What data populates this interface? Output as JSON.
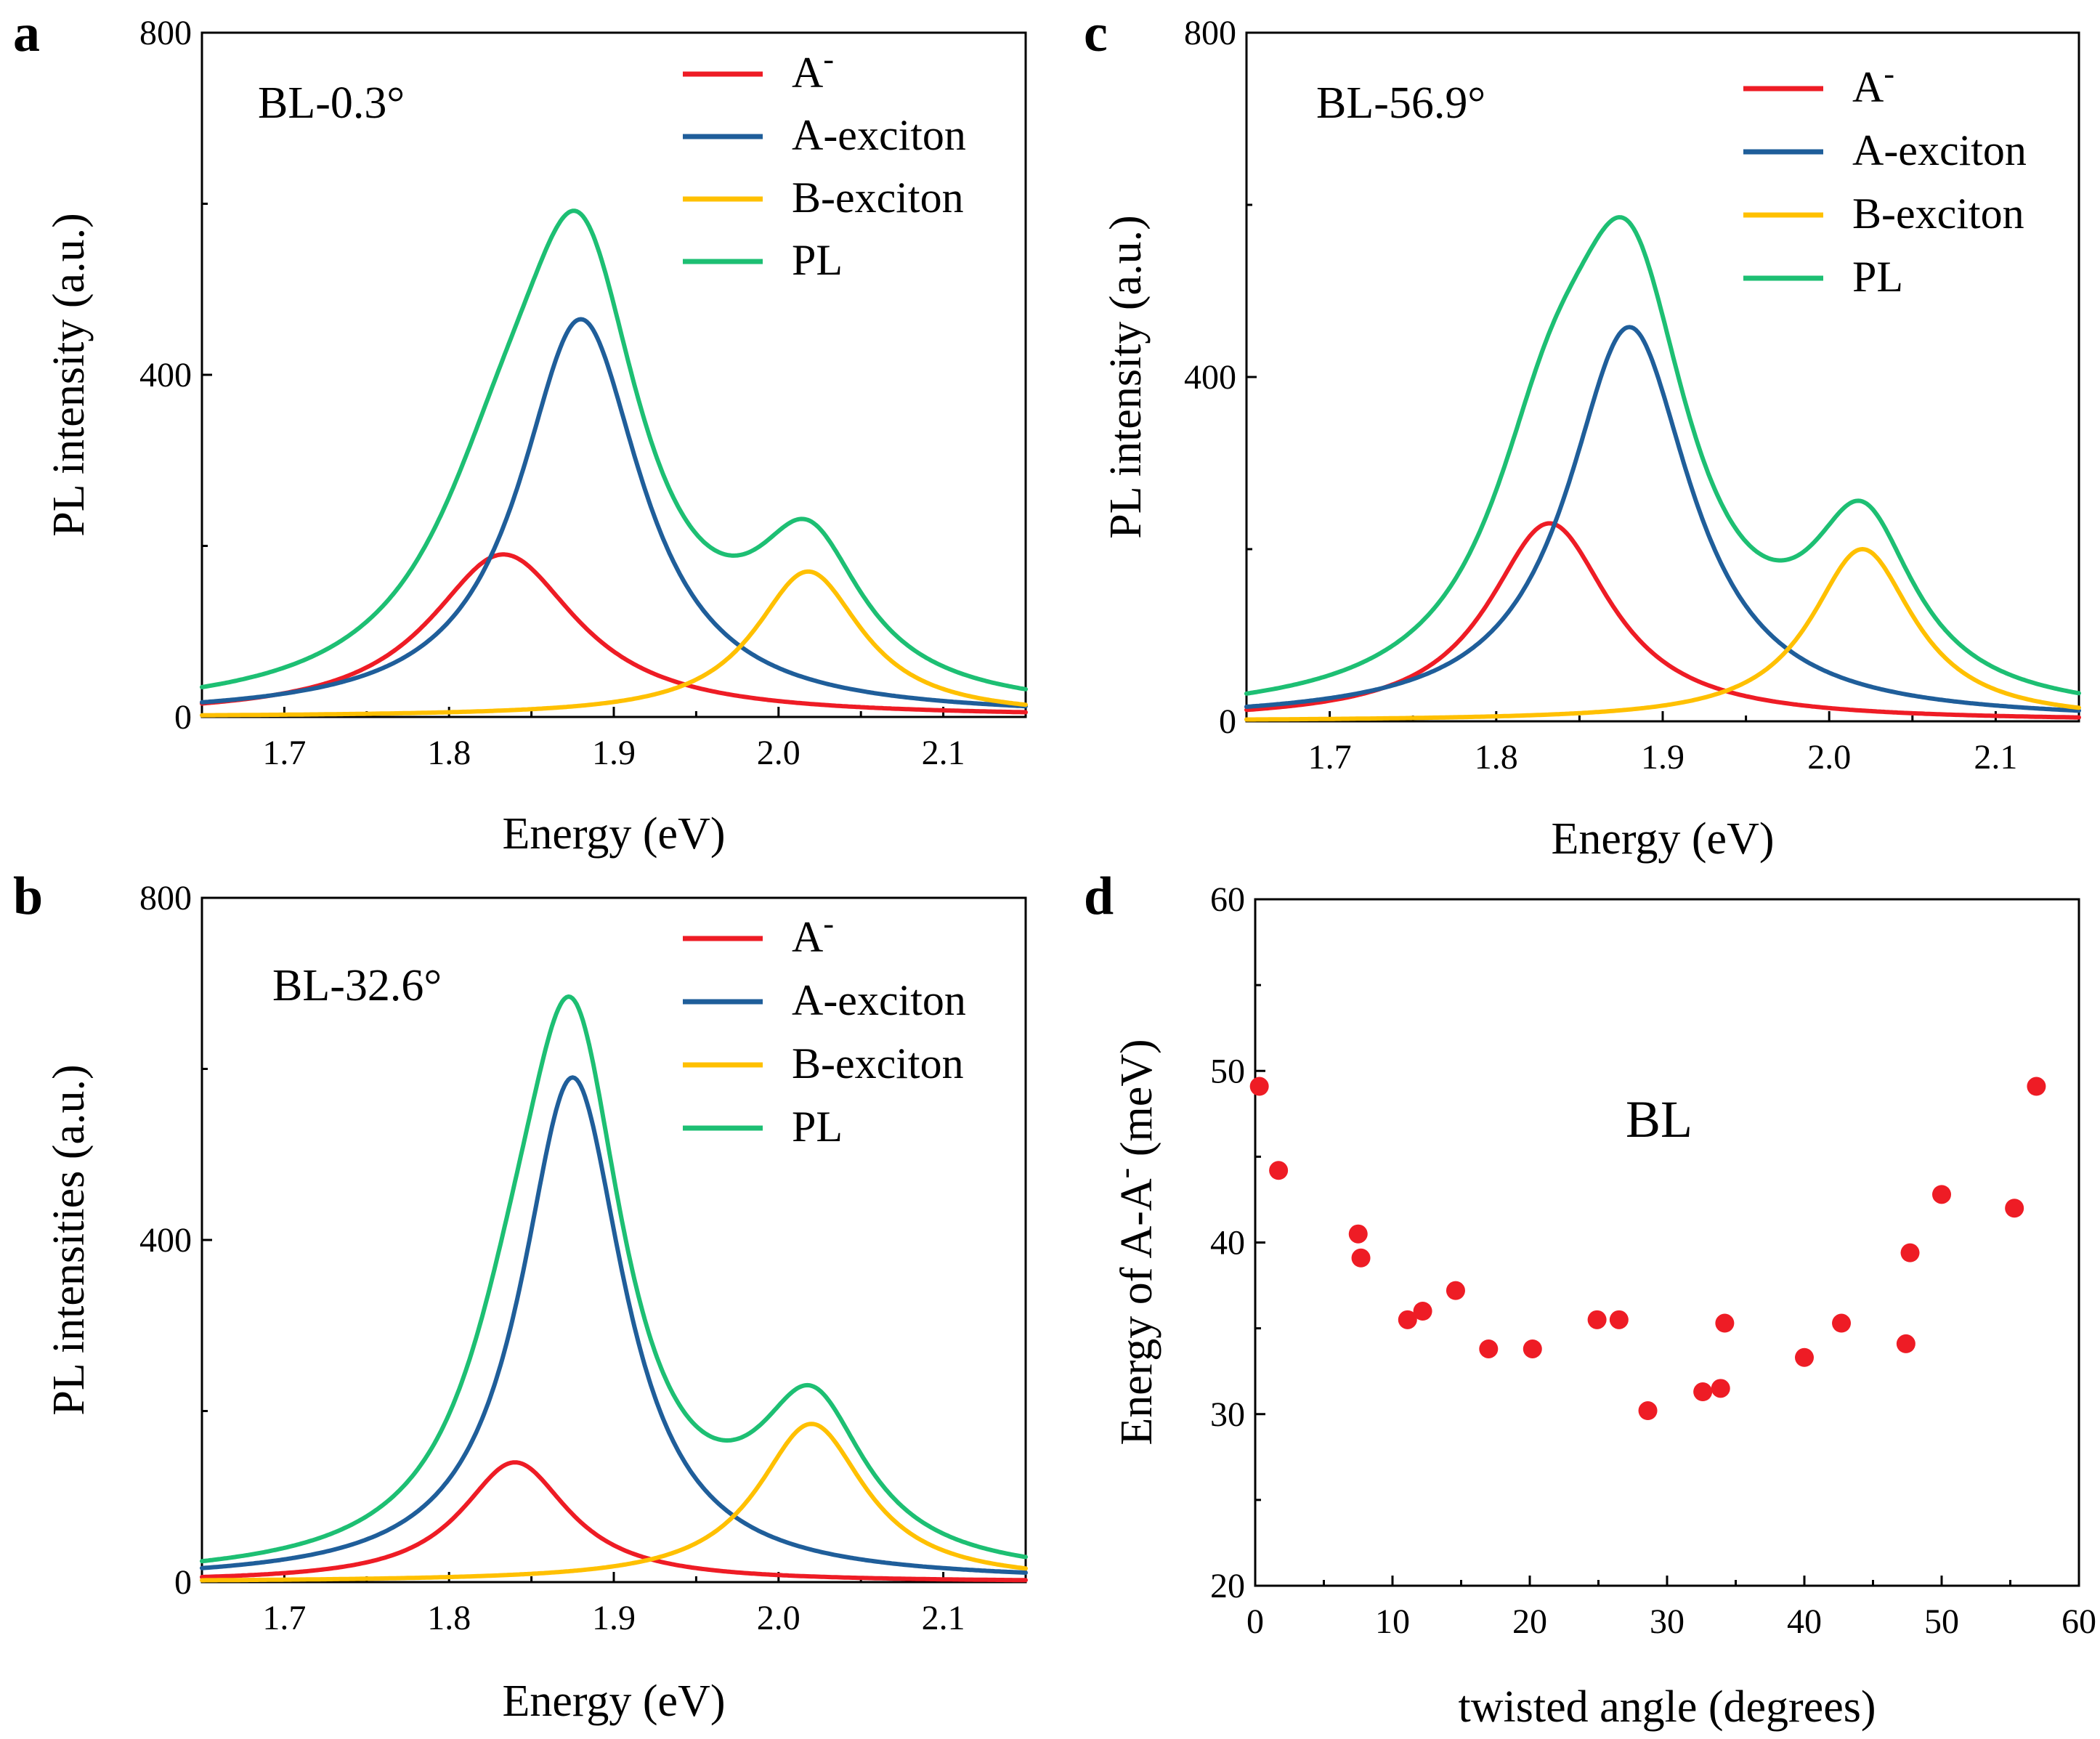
{
  "chart_data": [
    {
      "id": "a",
      "type": "line",
      "panel_label": "a",
      "annotation": "BL-0.3°",
      "xlabel": "Energy (eV)",
      "ylabel": "PL intensity (a.u.)",
      "xlim": [
        1.65,
        2.15
      ],
      "ylim": [
        0,
        800
      ],
      "xticks": [
        1.7,
        1.8,
        1.9,
        2.0,
        2.1
      ],
      "xtick_labels": [
        "1.7",
        "1.8",
        "1.9",
        "2.0",
        "2.1"
      ],
      "yticks": [
        0,
        400,
        800
      ],
      "ytick_labels": [
        "0",
        "400",
        "800"
      ],
      "legend_position": "top-right",
      "series": [
        {
          "name": "A",
          "name_sup": "-",
          "color": "#ee1c25",
          "peak_center": 1.833,
          "peak_height": 190,
          "peak_hwhm": 0.055
        },
        {
          "name": "A-exciton",
          "color": "#1f5e9a",
          "peak_center": 1.88,
          "peak_height": 465,
          "peak_hwhm": 0.045
        },
        {
          "name": "B-exciton",
          "color": "#ffc000",
          "peak_center": 2.018,
          "peak_height": 170,
          "peak_hwhm": 0.04
        },
        {
          "name": "PL",
          "color": "#1dbf73",
          "is_sum": true
        }
      ]
    },
    {
      "id": "b",
      "type": "line",
      "panel_label": "b",
      "annotation": "BL-32.6°",
      "xlabel": "Energy (eV)",
      "ylabel": "PL intensities (a.u.)",
      "xlim": [
        1.65,
        2.15
      ],
      "ylim": [
        0,
        800
      ],
      "xticks": [
        1.7,
        1.8,
        1.9,
        2.0,
        2.1
      ],
      "xtick_labels": [
        "1.7",
        "1.8",
        "1.9",
        "2.0",
        "2.1"
      ],
      "yticks": [
        0,
        400,
        800
      ],
      "ytick_labels": [
        "0",
        "400",
        "800"
      ],
      "legend_position": "top-right",
      "series": [
        {
          "name": "A",
          "name_sup": "-",
          "color": "#ee1c25",
          "peak_center": 1.84,
          "peak_height": 140,
          "peak_hwhm": 0.04
        },
        {
          "name": "A-exciton",
          "color": "#1f5e9a",
          "peak_center": 1.875,
          "peak_height": 590,
          "peak_hwhm": 0.038
        },
        {
          "name": "B-exciton",
          "color": "#ffc000",
          "peak_center": 2.02,
          "peak_height": 185,
          "peak_hwhm": 0.04
        },
        {
          "name": "PL",
          "color": "#1dbf73",
          "is_sum": true
        }
      ]
    },
    {
      "id": "c",
      "type": "line",
      "panel_label": "c",
      "annotation": "BL-56.9°",
      "xlabel": "Energy (eV)",
      "ylabel": "PL intensity (a.u.)",
      "xlim": [
        1.65,
        2.15
      ],
      "ylim": [
        0,
        800
      ],
      "xticks": [
        1.7,
        1.8,
        1.9,
        2.0,
        2.1
      ],
      "xtick_labels": [
        "1.7",
        "1.8",
        "1.9",
        "2.0",
        "2.1"
      ],
      "yticks": [
        0,
        400,
        800
      ],
      "ytick_labels": [
        "0",
        "400",
        "800"
      ],
      "legend_position": "top-right",
      "series": [
        {
          "name": "A",
          "name_sup": "-",
          "color": "#ee1c25",
          "peak_center": 1.832,
          "peak_height": 230,
          "peak_hwhm": 0.045
        },
        {
          "name": "A-exciton",
          "color": "#1f5e9a",
          "peak_center": 1.88,
          "peak_height": 458,
          "peak_hwhm": 0.045
        },
        {
          "name": "B-exciton",
          "color": "#ffc000",
          "peak_center": 2.02,
          "peak_height": 200,
          "peak_hwhm": 0.038
        },
        {
          "name": "PL",
          "color": "#1dbf73",
          "is_sum": true
        }
      ]
    },
    {
      "id": "d",
      "type": "scatter",
      "panel_label": "d",
      "annotation": "BL",
      "annotation_color": "#ee1c25",
      "xlabel": "twisted angle (degrees)",
      "ylabel": "Energy of A-A",
      "ylabel_sup": "-",
      "ylabel_suffix": " (meV)",
      "xlim": [
        0,
        60
      ],
      "ylim": [
        20,
        60
      ],
      "xticks": [
        0,
        10,
        20,
        30,
        40,
        50,
        60
      ],
      "xtick_labels": [
        "0",
        "10",
        "20",
        "30",
        "40",
        "50",
        "60"
      ],
      "yticks": [
        20,
        30,
        40,
        50,
        60
      ],
      "ytick_labels": [
        "20",
        "30",
        "40",
        "50",
        "60"
      ],
      "marker_color": "#ee1c25",
      "x": [
        0.3,
        1.7,
        7.5,
        7.7,
        11.1,
        12.2,
        14.6,
        17.0,
        20.2,
        24.9,
        26.5,
        28.6,
        32.6,
        33.9,
        34.2,
        40.0,
        42.7,
        47.4,
        47.7,
        50.0,
        55.3,
        56.9
      ],
      "y": [
        49.1,
        44.2,
        40.5,
        39.1,
        35.5,
        36.0,
        37.2,
        33.8,
        33.8,
        35.5,
        35.5,
        30.2,
        31.3,
        31.5,
        35.3,
        33.3,
        35.3,
        34.1,
        39.4,
        42.8,
        42.0,
        49.1
      ]
    }
  ]
}
